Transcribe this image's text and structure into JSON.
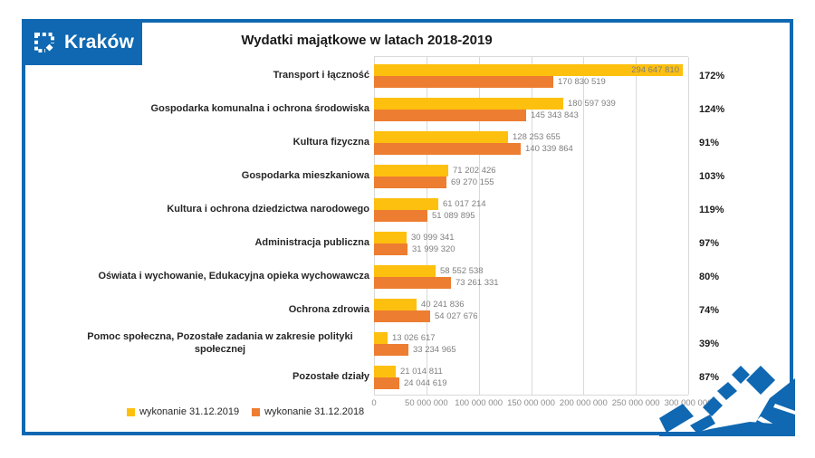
{
  "brand": {
    "name": "Kraków"
  },
  "colors": {
    "brand_blue": "#0F68B1",
    "series_2019": "#FEC00F",
    "series_2018": "#ED7D31",
    "gridline": "#D9D9D9",
    "value_label_text": "#7F7F7F",
    "axis_text": "#8C8C8C",
    "category_text": "#262626",
    "percent_text": "#1A1A1A"
  },
  "chart_data": {
    "type": "bar",
    "orientation": "horizontal",
    "title": "Wydatki majątkowe w latach 2018-2019",
    "xlim": [
      0,
      300000000
    ],
    "grid": true,
    "legend_position": "bottom-left",
    "x_ticks": [
      "0",
      "50 000 000",
      "100 000 000",
      "150 000 000",
      "200 000 000",
      "250 000 000",
      "300 000 000"
    ],
    "categories": [
      "Transport i łączność",
      "Gospodarka komunalna i ochrona środowiska",
      "Kultura fizyczna",
      "Gospodarka mieszkaniowa",
      "Kultura i ochrona dziedzictwa narodowego",
      "Administracja publiczna",
      "Oświata i wychowanie, Edukacyjna opieka wychowawcza",
      "Ochrona zdrowia",
      "Pomoc społeczna, Pozostałe zadania w zakresie polityki społecznej",
      "Pozostałe działy"
    ],
    "series": [
      {
        "name": "wykonanie 31.12.2019",
        "color": "#FEC00F",
        "values": [
          294647810,
          180597939,
          128253655,
          71202426,
          61017214,
          30999341,
          58552538,
          40241836,
          13026617,
          21014811
        ],
        "value_labels": [
          "294 647 810",
          "180 597 939",
          "128 253 655",
          "71 202 426",
          "61 017 214",
          "30 999 341",
          "58 552 538",
          "40 241 836",
          "13 026 617",
          "21 014 811"
        ]
      },
      {
        "name": "wykonanie 31.12.2018",
        "color": "#ED7D31",
        "values": [
          170830519,
          145343843,
          140339864,
          69270155,
          51089895,
          31999320,
          73261331,
          54027676,
          33234965,
          24044619
        ],
        "value_labels": [
          "170 830 519",
          "145 343 843",
          "140 339 864",
          "69 270 155",
          "51 089 895",
          "31 999 320",
          "73 261 331",
          "54 027 676",
          "33 234 965",
          "24 044 619"
        ]
      }
    ],
    "percent_labels": [
      "172%",
      "124%",
      "91%",
      "103%",
      "119%",
      "97%",
      "80%",
      "74%",
      "39%",
      "87%"
    ]
  }
}
